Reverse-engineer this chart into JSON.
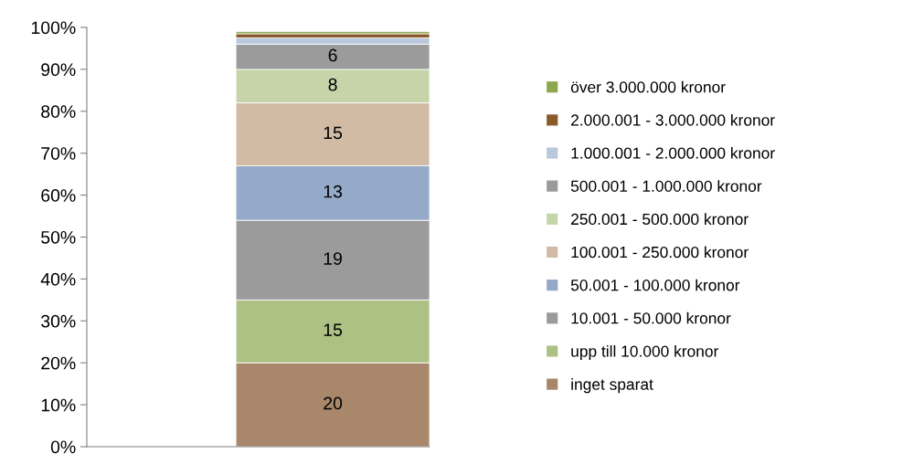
{
  "chart_data": {
    "type": "bar",
    "stacked": true,
    "categories": [
      null
    ],
    "series": [
      {
        "name": "inget sparat",
        "color": "#a9876a",
        "values": [
          20
        ],
        "value_labels": [
          "20"
        ]
      },
      {
        "name": "upp till 10.000 kronor",
        "color": "#adc184",
        "values": [
          15
        ],
        "value_labels": [
          "15"
        ]
      },
      {
        "name": "10.001 - 50.000 kronor",
        "color": "#9b9b9b",
        "values": [
          19
        ],
        "value_labels": [
          "19"
        ]
      },
      {
        "name": "50.001 - 100.000 kronor",
        "color": "#95a9c8",
        "values": [
          13
        ],
        "value_labels": [
          "13"
        ]
      },
      {
        "name": "100.001 - 250.000 kronor",
        "color": "#d2bba5",
        "values": [
          15
        ],
        "value_labels": [
          "15"
        ]
      },
      {
        "name": "250.001 - 500.000 kronor",
        "color": "#c6d5a9",
        "values": [
          8
        ],
        "value_labels": [
          "8"
        ]
      },
      {
        "name": "500.001 - 1.000.000 kronor",
        "color": "#9b9b9b",
        "values": [
          6
        ],
        "value_labels": [
          "6"
        ]
      },
      {
        "name": "1.000.001 - 2.000.000 kronor",
        "color": "#b9c8dc",
        "values": [
          1.5
        ],
        "value_labels": [
          null
        ]
      },
      {
        "name": "2.000.001 - 3.000.000 kronor",
        "color": "#8b5a2b",
        "values": [
          1
        ],
        "value_labels": [
          null
        ]
      },
      {
        "name": "över 3.000.000 kronor",
        "color": "#8ea64c",
        "values": [
          0.5
        ],
        "value_labels": [
          null
        ]
      }
    ],
    "ylim": [
      0,
      100
    ],
    "yticks": [
      {
        "value": 0,
        "label": "0%"
      },
      {
        "value": 10,
        "label": "10%"
      },
      {
        "value": 20,
        "label": "20%"
      },
      {
        "value": 30,
        "label": "30%"
      },
      {
        "value": 40,
        "label": "40%"
      },
      {
        "value": 50,
        "label": "50%"
      },
      {
        "value": 60,
        "label": "60%"
      },
      {
        "value": 70,
        "label": "70%"
      },
      {
        "value": 80,
        "label": "80%"
      },
      {
        "value": 90,
        "label": "90%"
      },
      {
        "value": 100,
        "label": "100%"
      }
    ],
    "grid": false,
    "legend": "right"
  }
}
